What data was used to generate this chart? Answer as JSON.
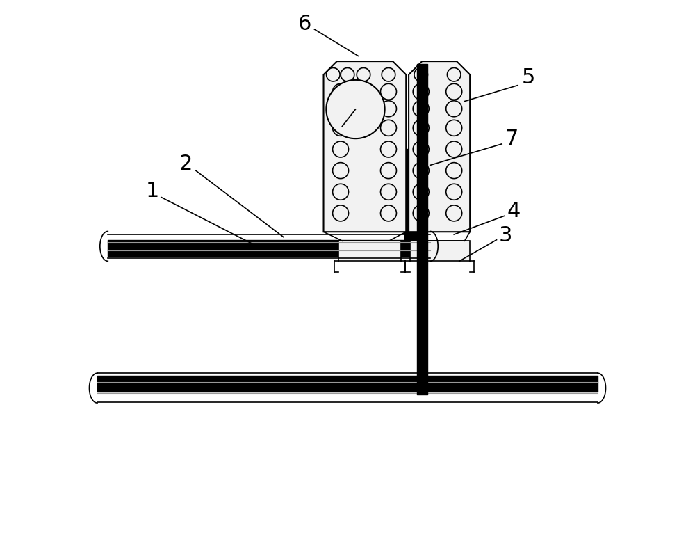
{
  "bg_color": "#ffffff",
  "line_color": "#000000",
  "gray_line_color": "#999999",
  "label_color": "#000000",
  "label_fontsize": 22,
  "figure_width": 10.0,
  "figure_height": 7.66
}
